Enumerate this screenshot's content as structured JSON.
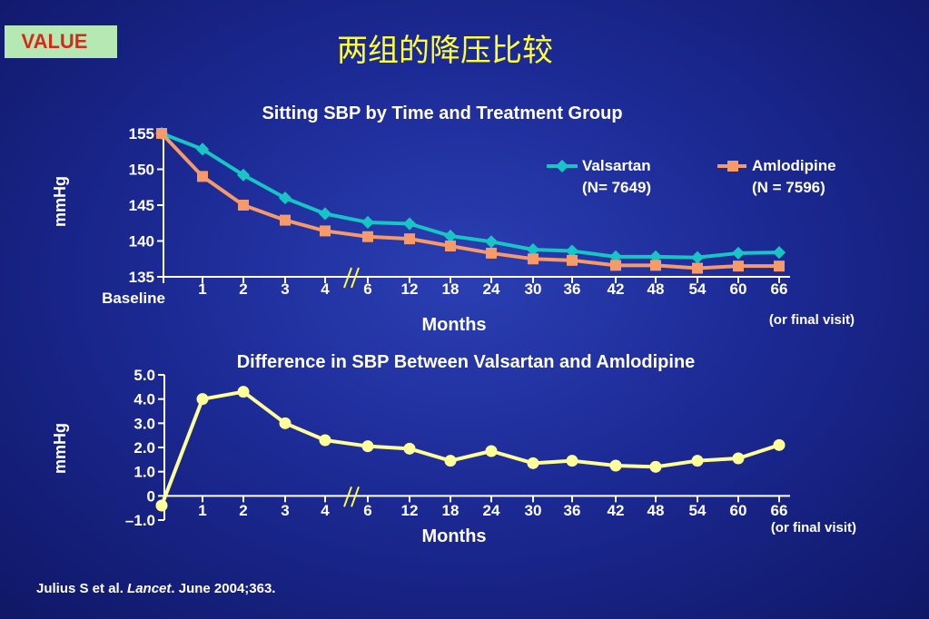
{
  "badge": "VALUE",
  "slide_title": "两组的降压比较",
  "citation": {
    "pre": "Julius S et al. ",
    "journal": "Lancet",
    "post": ". June 2004;363."
  },
  "colors": {
    "valsartan": "#19c4c4",
    "amlodipine": "#f59a68",
    "difference": "#ffff99",
    "title": "#ffff33",
    "badge_bg": "#b6e8b4",
    "badge_text": "#d42a1a"
  },
  "chart_data": [
    {
      "type": "line",
      "title": "Sitting SBP by Time and Treatment Group",
      "xlabel": "Months",
      "ylabel": "mmHg",
      "x_note": "(or final visit)",
      "axis_break_after": "4",
      "categories": [
        "Baseline",
        "1",
        "2",
        "3",
        "4",
        "6",
        "12",
        "18",
        "24",
        "30",
        "36",
        "42",
        "48",
        "54",
        "60",
        "66"
      ],
      "ylim": [
        135,
        155
      ],
      "yticks": [
        "155",
        "150",
        "145",
        "140",
        "135"
      ],
      "legend_position": "top-right",
      "series": [
        {
          "name": "Valsartan",
          "name_sub": "(N= 7649)",
          "marker": "diamond",
          "values": [
            155,
            152.8,
            149.2,
            146,
            143.8,
            142.6,
            142.4,
            140.7,
            139.9,
            138.8,
            138.6,
            137.8,
            137.8,
            137.7,
            138.3,
            138.4
          ]
        },
        {
          "name": "Amlodipine",
          "name_sub": "(N = 7596)",
          "marker": "square",
          "values": [
            155,
            149,
            145,
            142.9,
            141.4,
            140.6,
            140.3,
            139.3,
            138.3,
            137.5,
            137.3,
            136.6,
            136.6,
            136.2,
            136.5,
            136.5
          ]
        }
      ]
    },
    {
      "type": "line",
      "title": "Difference in SBP Between Valsartan and Amlodipine",
      "xlabel": "Months",
      "ylabel": "mmHg",
      "x_note": "(or final visit)",
      "axis_break_after": "4",
      "categories": [
        "",
        "1",
        "2",
        "3",
        "4",
        "6",
        "12",
        "18",
        "24",
        "30",
        "36",
        "42",
        "48",
        "54",
        "60",
        "66"
      ],
      "ylim": [
        -1.0,
        5.0
      ],
      "yticks": [
        "5.0",
        "4.0",
        "3.0",
        "2.0",
        "1.0",
        "0",
        "–1.0"
      ],
      "series": [
        {
          "marker": "circle",
          "values": [
            -0.4,
            4.0,
            4.3,
            3.0,
            2.3,
            2.05,
            1.95,
            1.45,
            1.85,
            1.35,
            1.45,
            1.25,
            1.2,
            1.45,
            1.55,
            2.1
          ]
        }
      ]
    }
  ]
}
